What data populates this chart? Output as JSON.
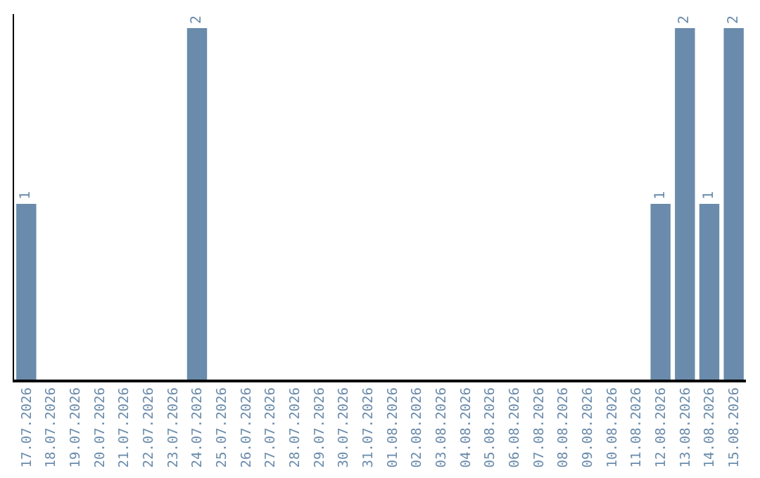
{
  "chart_data": {
    "type": "bar",
    "categories": [
      "17.07.2026",
      "18.07.2026",
      "19.07.2026",
      "20.07.2026",
      "21.07.2026",
      "22.07.2026",
      "23.07.2026",
      "24.07.2026",
      "25.07.2026",
      "26.07.2026",
      "27.07.2026",
      "28.07.2026",
      "29.07.2026",
      "30.07.2026",
      "31.07.2026",
      "01.08.2026",
      "02.08.2026",
      "03.08.2026",
      "04.08.2026",
      "05.08.2026",
      "06.08.2026",
      "07.08.2026",
      "08.08.2026",
      "09.08.2026",
      "10.08.2026",
      "11.08.2026",
      "12.08.2026",
      "13.08.2026",
      "14.08.2026",
      "15.08.2026"
    ],
    "values": [
      1,
      0,
      0,
      0,
      0,
      0,
      0,
      2,
      0,
      0,
      0,
      0,
      0,
      0,
      0,
      0,
      0,
      0,
      0,
      0,
      0,
      0,
      0,
      0,
      0,
      0,
      1,
      2,
      1,
      2
    ],
    "value_labels": [
      "1",
      null,
      null,
      null,
      null,
      null,
      null,
      "2",
      null,
      null,
      null,
      null,
      null,
      null,
      null,
      null,
      null,
      null,
      null,
      null,
      null,
      null,
      null,
      null,
      null,
      null,
      "1",
      "2",
      "1",
      "2"
    ],
    "color": "#6a8bab",
    "ylim": [
      0,
      2.08
    ],
    "tick_labels": "x",
    "legend": false
  }
}
